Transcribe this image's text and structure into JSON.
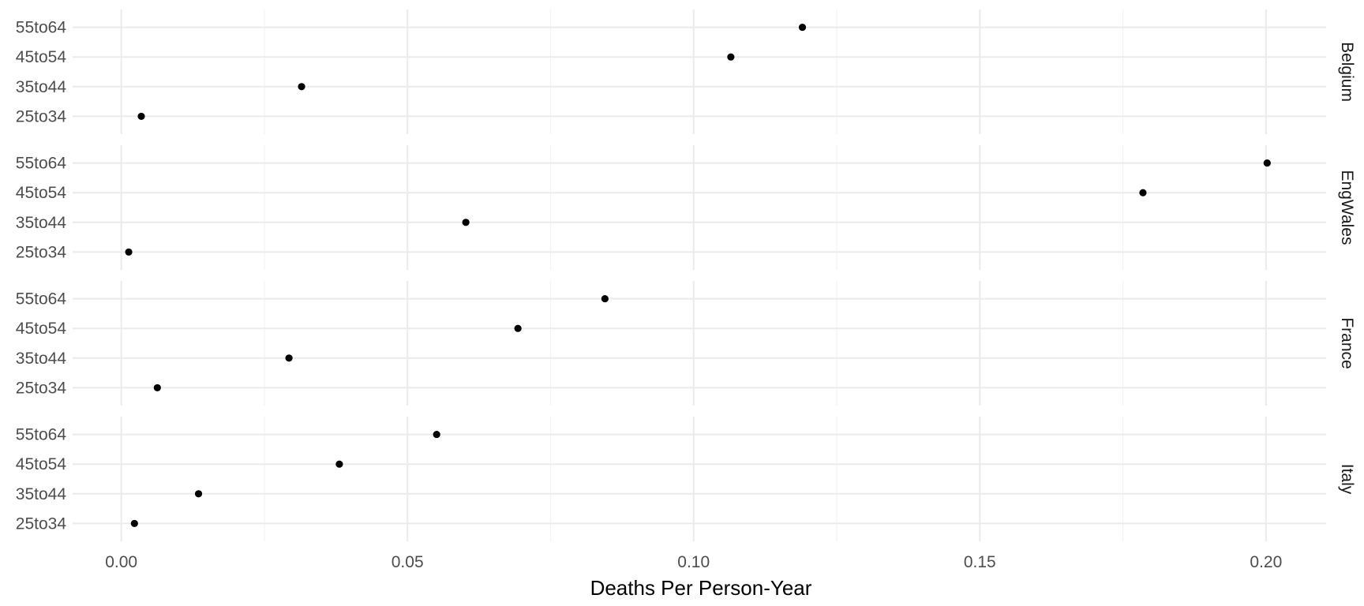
{
  "chart_data": {
    "type": "scatter",
    "xlabel": "Deaths Per Person-Year",
    "ylabel": "",
    "title": "",
    "xlim": [
      -0.0085,
      0.2105
    ],
    "x_ticks": [
      0.0,
      0.05,
      0.1,
      0.15,
      0.2
    ],
    "x_tick_labels": [
      "0.00",
      "0.05",
      "0.10",
      "0.15",
      "0.20"
    ],
    "categories": [
      "25to34",
      "35to44",
      "45to54",
      "55to64"
    ],
    "grid": true,
    "point_color": "#000000",
    "facets": [
      {
        "name": "Belgium",
        "values": [
          0.0035,
          0.0315,
          0.1065,
          0.119
        ]
      },
      {
        "name": "EngWales",
        "values": [
          0.0013,
          0.0602,
          0.1785,
          0.2002
        ]
      },
      {
        "name": "France",
        "values": [
          0.0063,
          0.0293,
          0.0693,
          0.0845
        ]
      },
      {
        "name": "Italy",
        "values": [
          0.0023,
          0.0135,
          0.0381,
          0.0551
        ]
      }
    ]
  }
}
